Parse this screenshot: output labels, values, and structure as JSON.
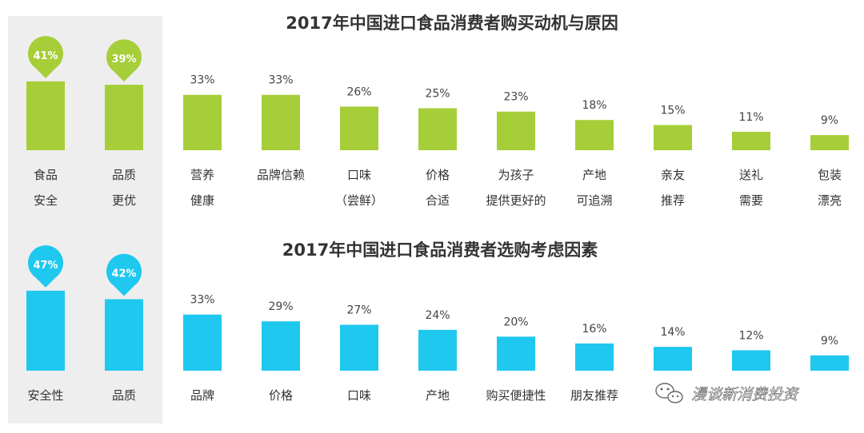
{
  "chart_data": [
    {
      "type": "bar",
      "title": "2017年中国进口食品消费者购买动机与原因",
      "color": "#a6ce39",
      "highlight_count": 2,
      "ylim": [
        0,
        50
      ],
      "categories": [
        [
          "食品",
          "安全"
        ],
        [
          "品质",
          "更优"
        ],
        [
          "营养",
          "健康"
        ],
        [
          "品牌信赖"
        ],
        [
          "口味",
          "（尝鲜）"
        ],
        [
          "价格",
          "合适"
        ],
        [
          "为孩子",
          "提供更好的"
        ],
        [
          "产地",
          "可追溯"
        ],
        [
          "亲友",
          "推荐"
        ],
        [
          "送礼",
          "需要"
        ],
        [
          "包装",
          "漂亮"
        ]
      ],
      "value_labels": [
        "41%",
        "39%",
        "33%",
        "33%",
        "26%",
        "25%",
        "23%",
        "18%",
        "15%",
        "11%",
        "9%"
      ],
      "values": [
        41,
        39,
        33,
        33,
        26,
        25,
        23,
        18,
        15,
        11,
        9
      ]
    },
    {
      "type": "bar",
      "title": "2017年中国进口食品消费者选购考虑因素",
      "color": "#1ec8ef",
      "highlight_count": 2,
      "ylim": [
        0,
        50
      ],
      "categories": [
        [
          "安全性"
        ],
        [
          "品质"
        ],
        [
          "品牌"
        ],
        [
          "价格"
        ],
        [
          "口味"
        ],
        [
          "产地"
        ],
        [
          "购买便捷性"
        ],
        [
          "朋友推荐"
        ],
        [
          ""
        ],
        [
          ""
        ],
        [
          ""
        ]
      ],
      "value_labels": [
        "47%",
        "42%",
        "33%",
        "29%",
        "27%",
        "24%",
        "20%",
        "16%",
        "14%",
        "12%",
        "9%"
      ],
      "values": [
        47,
        42,
        33,
        29,
        27,
        24,
        20,
        16,
        14,
        12,
        9
      ]
    }
  ],
  "watermark": {
    "text": "漫谈新消费投资",
    "icon": "wechat-icon"
  }
}
